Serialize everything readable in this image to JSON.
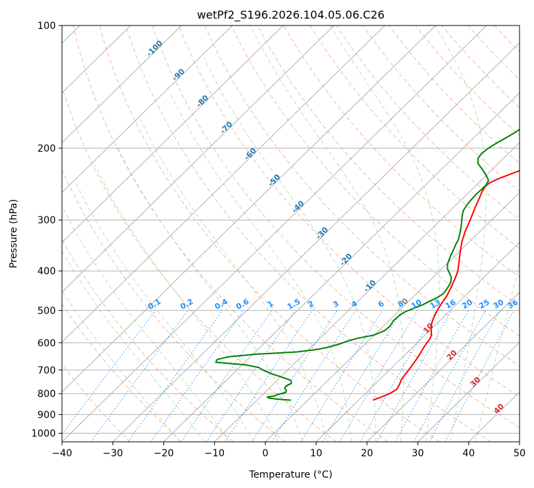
{
  "chart_data": {
    "type": "line",
    "chart_kind": "skew-T log-P diagram",
    "title": "wetPf2_S196.2026.104.05.06.C26",
    "xlabel": "Temperature (°C)",
    "ylabel": "Pressure (hPa)",
    "xlim": [
      -40,
      50
    ],
    "ylim": [
      1050,
      100
    ],
    "x_ticks": [
      -40,
      -30,
      -20,
      -10,
      0,
      10,
      20,
      30,
      40,
      50
    ],
    "x_tick_labels": [
      "−40",
      "−30",
      "−20",
      "−10",
      "0",
      "10",
      "20",
      "30",
      "40",
      "50"
    ],
    "y_ticks": [
      100,
      200,
      300,
      400,
      500,
      600,
      700,
      800,
      900,
      1000
    ],
    "y_tick_labels": [
      "100",
      "200",
      "300",
      "400",
      "500",
      "600",
      "700",
      "800",
      "900",
      "1000"
    ],
    "grid": true,
    "isotherm_labels": [
      "-100",
      "-90",
      "-80",
      "-70",
      "-60",
      "-50",
      "-40",
      "-30",
      "-20",
      "-10",
      "0",
      "10",
      "20",
      "30",
      "40"
    ],
    "mixing_ratio_labels": [
      "0.1",
      "0.2",
      "0.4",
      "0.6",
      "1",
      "1.5",
      "2",
      "3",
      "4",
      "6",
      "8",
      "10",
      "13",
      "16",
      "20",
      "25",
      "30",
      "36"
    ],
    "series": [
      {
        "name": "Temperature",
        "color": "#ff0000",
        "points": [
          [
            830,
            12.8
          ],
          [
            820,
            13.5
          ],
          [
            800,
            14.8
          ],
          [
            780,
            15.3
          ],
          [
            760,
            14.9
          ],
          [
            740,
            14.3
          ],
          [
            720,
            14.0
          ],
          [
            700,
            13.8
          ],
          [
            680,
            13.5
          ],
          [
            660,
            13.2
          ],
          [
            640,
            12.8
          ],
          [
            620,
            12.3
          ],
          [
            605,
            12.0
          ],
          [
            590,
            11.8
          ],
          [
            575,
            11.3
          ],
          [
            560,
            10.3
          ],
          [
            545,
            9.3
          ],
          [
            530,
            8.6
          ],
          [
            510,
            7.8
          ],
          [
            495,
            7.3
          ],
          [
            480,
            6.9
          ],
          [
            460,
            6.4
          ],
          [
            440,
            5.6
          ],
          [
            420,
            4.7
          ],
          [
            400,
            3.6
          ],
          [
            380,
            2.0
          ],
          [
            360,
            0.3
          ],
          [
            340,
            -1.4
          ],
          [
            320,
            -2.9
          ],
          [
            300,
            -4.2
          ],
          [
            280,
            -5.7
          ],
          [
            265,
            -6.8
          ],
          [
            255,
            -7.6
          ],
          [
            248,
            -8.0
          ],
          [
            243,
            -7.8
          ],
          [
            238,
            -7.0
          ],
          [
            232,
            -5.6
          ],
          [
            226,
            -4.1
          ],
          [
            220,
            -2.5
          ],
          [
            210,
            -0.3
          ],
          [
            200,
            1.3
          ],
          [
            190,
            2.9
          ],
          [
            180,
            4.4
          ],
          [
            170,
            6.1
          ],
          [
            160,
            7.8
          ],
          [
            154,
            9.0
          ],
          [
            150,
            9.6
          ],
          [
            146,
            9.8
          ],
          [
            140,
            9.5
          ],
          [
            132,
            9.2
          ],
          [
            126,
            9.5
          ],
          [
            120,
            10.1
          ],
          [
            114,
            10.7
          ],
          [
            108,
            11.3
          ],
          [
            102,
            12.0
          ],
          [
            100,
            12.2
          ]
        ]
      },
      {
        "name": "Dewpoint",
        "color": "#008000",
        "points": [
          [
            830,
            -3.3
          ],
          [
            825,
            -6.1
          ],
          [
            820,
            -8.1
          ],
          [
            815,
            -8.6
          ],
          [
            810,
            -7.3
          ],
          [
            803,
            -7.0
          ],
          [
            795,
            -5.9
          ],
          [
            785,
            -6.2
          ],
          [
            775,
            -7.0
          ],
          [
            765,
            -7.1
          ],
          [
            755,
            -6.6
          ],
          [
            742,
            -7.3
          ],
          [
            730,
            -9.5
          ],
          [
            715,
            -12.4
          ],
          [
            700,
            -14.9
          ],
          [
            690,
            -16.2
          ],
          [
            680,
            -19.3
          ],
          [
            670,
            -25.7
          ],
          [
            660,
            -26.0
          ],
          [
            650,
            -24.4
          ],
          [
            640,
            -19.2
          ],
          [
            632,
            -11.9
          ],
          [
            624,
            -8.6
          ],
          [
            616,
            -6.7
          ],
          [
            605,
            -5.1
          ],
          [
            595,
            -4.1
          ],
          [
            585,
            -2.6
          ],
          [
            575,
            -0.1
          ],
          [
            560,
            1.2
          ],
          [
            545,
            1.3
          ],
          [
            530,
            0.9
          ],
          [
            515,
            1.0
          ],
          [
            505,
            1.3
          ],
          [
            495,
            2.3
          ],
          [
            485,
            3.4
          ],
          [
            475,
            4.1
          ],
          [
            465,
            4.9
          ],
          [
            455,
            5.3
          ],
          [
            445,
            5.1
          ],
          [
            435,
            4.8
          ],
          [
            425,
            4.4
          ],
          [
            415,
            3.6
          ],
          [
            405,
            2.4
          ],
          [
            395,
            1.1
          ],
          [
            385,
            0.2
          ],
          [
            375,
            -0.4
          ],
          [
            365,
            -1.0
          ],
          [
            355,
            -1.5
          ],
          [
            345,
            -2.1
          ],
          [
            335,
            -2.6
          ],
          [
            325,
            -3.4
          ],
          [
            315,
            -4.3
          ],
          [
            305,
            -5.3
          ],
          [
            295,
            -6.4
          ],
          [
            285,
            -7.4
          ],
          [
            275,
            -7.9
          ],
          [
            266,
            -8.1
          ],
          [
            258,
            -8.2
          ],
          [
            252,
            -8.1
          ],
          [
            246,
            -8.1
          ],
          [
            240,
            -8.5
          ],
          [
            234,
            -9.8
          ],
          [
            226,
            -11.8
          ],
          [
            218,
            -14.0
          ],
          [
            212,
            -15.0
          ],
          [
            206,
            -15.3
          ],
          [
            200,
            -15.0
          ],
          [
            194,
            -14.4
          ],
          [
            188,
            -13.6
          ],
          [
            182,
            -12.8
          ],
          [
            176,
            -12.4
          ],
          [
            170,
            -12.4
          ],
          [
            164,
            -12.9
          ],
          [
            158,
            -13.9
          ],
          [
            152,
            -15.0
          ],
          [
            146,
            -15.7
          ],
          [
            142,
            -15.5
          ],
          [
            138,
            -14.8
          ],
          [
            134,
            -14.0
          ],
          [
            130,
            -13.3
          ],
          [
            126,
            -12.4
          ],
          [
            122,
            -11.5
          ],
          [
            118,
            -10.8
          ],
          [
            114,
            -10.2
          ],
          [
            110,
            -9.4
          ],
          [
            106,
            -8.5
          ],
          [
            102,
            -7.9
          ],
          [
            100,
            -7.5
          ]
        ]
      }
    ]
  }
}
